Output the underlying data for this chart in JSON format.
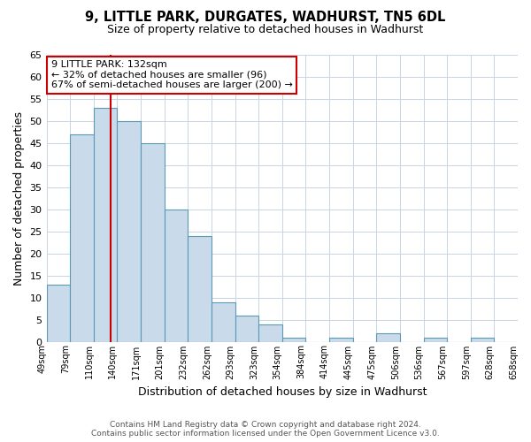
{
  "title": "9, LITTLE PARK, DURGATES, WADHURST, TN5 6DL",
  "subtitle": "Size of property relative to detached houses in Wadhurst",
  "xlabel": "Distribution of detached houses by size in Wadhurst",
  "ylabel": "Number of detached properties",
  "bin_labels": [
    "49sqm",
    "79sqm",
    "110sqm",
    "140sqm",
    "171sqm",
    "201sqm",
    "232sqm",
    "262sqm",
    "293sqm",
    "323sqm",
    "354sqm",
    "384sqm",
    "414sqm",
    "445sqm",
    "475sqm",
    "506sqm",
    "536sqm",
    "567sqm",
    "597sqm",
    "628sqm",
    "658sqm"
  ],
  "counts": [
    13,
    47,
    53,
    50,
    45,
    30,
    24,
    9,
    6,
    4,
    1,
    0,
    1,
    0,
    2,
    0,
    1,
    0,
    1,
    0
  ],
  "bar_color": "#c9daea",
  "bar_edge_color": "#5b9ab5",
  "property_line_x": 3,
  "property_line_color": "#cc0000",
  "annotation_title": "9 LITTLE PARK: 132sqm",
  "annotation_line1": "← 32% of detached houses are smaller (96)",
  "annotation_line2": "67% of semi-detached houses are larger (200) →",
  "annotation_box_color": "#ffffff",
  "annotation_box_edge": "#cc0000",
  "ylim": [
    0,
    65
  ],
  "yticks": [
    0,
    5,
    10,
    15,
    20,
    25,
    30,
    35,
    40,
    45,
    50,
    55,
    60,
    65
  ],
  "footer_line1": "Contains HM Land Registry data © Crown copyright and database right 2024.",
  "footer_line2": "Contains public sector information licensed under the Open Government Licence v3.0.",
  "background_color": "#ffffff",
  "grid_color": "#c8d4e0"
}
